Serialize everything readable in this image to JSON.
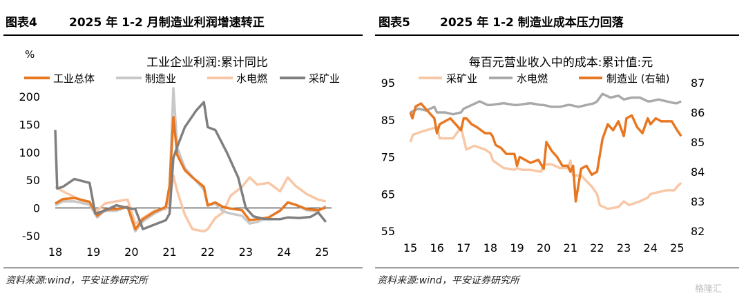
{
  "figures": [
    {
      "label": "图表4",
      "title": "2025 年 1-2 月制造业利润增速转正",
      "source": "资料来源:wind，平安证券研究所"
    },
    {
      "label": "图表5",
      "title": "2025 年 1-2 制造业成本压力回落",
      "source": "资料来源:wind，平安证券研究所"
    }
  ],
  "watermark": "格隆汇",
  "chart_data": [
    {
      "type": "line",
      "title": "工业企业利润:累计同比",
      "ylabel": "%",
      "ylim": [
        -50,
        200
      ],
      "yticks": [
        -50,
        0,
        50,
        100,
        150,
        200
      ],
      "xlim": [
        2018.0,
        2025.25
      ],
      "xticks": [
        "18",
        "19",
        "20",
        "21",
        "22",
        "23",
        "24",
        "25"
      ],
      "legend_position": "top",
      "grid": false,
      "series": [
        {
          "name": "工业总体",
          "color": "#E87722",
          "x": [
            2018.0,
            2018.2,
            2018.5,
            2018.9,
            2019.1,
            2019.3,
            2019.6,
            2019.9,
            2020.1,
            2020.3,
            2020.6,
            2020.9,
            2021.0,
            2021.1,
            2021.2,
            2021.4,
            2021.6,
            2021.9,
            2022.0,
            2022.2,
            2022.4,
            2022.6,
            2022.9,
            2023.1,
            2023.3,
            2023.6,
            2023.9,
            2024.1,
            2024.3,
            2024.6,
            2024.9,
            2025.1
          ],
          "y": [
            8,
            16,
            18,
            11,
            -14,
            -3,
            -2,
            2,
            -38,
            -20,
            -7,
            2,
            40,
            163,
            95,
            68,
            55,
            38,
            5,
            10,
            2,
            -1,
            -4,
            -22,
            -20,
            -17,
            -5,
            10,
            6,
            -2,
            -4,
            1
          ]
        },
        {
          "name": "制造业",
          "color": "#C8C8C8",
          "x": [
            2018.0,
            2018.2,
            2018.5,
            2018.9,
            2019.1,
            2019.3,
            2019.6,
            2019.9,
            2020.1,
            2020.3,
            2020.6,
            2020.9,
            2021.0,
            2021.1,
            2021.2,
            2021.4,
            2021.6,
            2021.9,
            2022.0,
            2022.2,
            2022.4,
            2022.6,
            2022.9,
            2023.1,
            2023.3,
            2023.6,
            2023.9,
            2024.1,
            2024.3,
            2024.6,
            2024.9,
            2025.1
          ],
          "y": [
            5,
            12,
            12,
            6,
            -17,
            -5,
            -5,
            2,
            -42,
            -24,
            -10,
            0,
            40,
            215,
            108,
            72,
            56,
            33,
            4,
            8,
            -6,
            -10,
            -14,
            -28,
            -25,
            -17,
            -4,
            10,
            6,
            -4,
            -6,
            4
          ]
        },
        {
          "name": "水电燃",
          "color": "#F8C7A6",
          "x": [
            2018.0,
            2018.2,
            2018.5,
            2018.9,
            2019.1,
            2019.3,
            2019.6,
            2019.9,
            2020.1,
            2020.3,
            2020.6,
            2020.9,
            2021.0,
            2021.1,
            2021.2,
            2021.4,
            2021.6,
            2021.9,
            2022.0,
            2022.2,
            2022.4,
            2022.6,
            2022.9,
            2023.1,
            2023.3,
            2023.6,
            2023.9,
            2024.1,
            2024.3,
            2024.6,
            2024.9,
            2025.1
          ],
          "y": [
            38,
            30,
            20,
            5,
            -5,
            8,
            12,
            15,
            -28,
            -18,
            -5,
            -2,
            15,
            58,
            30,
            -12,
            -38,
            -42,
            -38,
            -18,
            -8,
            22,
            38,
            55,
            42,
            45,
            30,
            55,
            40,
            25,
            15,
            12
          ]
        },
        {
          "name": "采矿业",
          "color": "#7F7F7F",
          "x": [
            2018.0,
            2018.05,
            2018.2,
            2018.5,
            2018.9,
            2019.05,
            2019.3,
            2019.6,
            2019.9,
            2020.1,
            2020.3,
            2020.6,
            2020.9,
            2021.0,
            2021.1,
            2021.2,
            2021.4,
            2021.7,
            2021.9,
            2022.0,
            2022.2,
            2022.5,
            2022.8,
            2023.0,
            2023.2,
            2023.5,
            2023.9,
            2024.1,
            2024.4,
            2024.7,
            2024.9,
            2025.1
          ],
          "y": [
            140,
            35,
            38,
            52,
            45,
            -10,
            -5,
            5,
            0,
            -2,
            -38,
            -30,
            -22,
            -10,
            90,
            110,
            145,
            175,
            190,
            145,
            140,
            100,
            55,
            0,
            -15,
            -20,
            -20,
            -17,
            -18,
            -16,
            -8,
            -25
          ]
        }
      ]
    },
    {
      "type": "line",
      "title": "每百元营业收入中的成本:累计值:元",
      "ylim": [
        55,
        95
      ],
      "yticks": [
        55,
        65,
        75,
        85,
        95
      ],
      "y2lim": [
        82,
        87
      ],
      "y2ticks": [
        82,
        83,
        84,
        85,
        86,
        87
      ],
      "xlim": [
        2015.0,
        2025.25
      ],
      "xticks": [
        "15",
        "16",
        "17",
        "18",
        "19",
        "20",
        "21",
        "22",
        "23",
        "24",
        "25"
      ],
      "legend_position": "top",
      "grid": false,
      "series": [
        {
          "name": "采矿业",
          "color": "#F8C7A6",
          "axis": "left",
          "x": [
            2015.0,
            2015.1,
            2015.5,
            2016.0,
            2016.1,
            2016.6,
            2016.9,
            2017.1,
            2017.4,
            2017.8,
            2018.0,
            2018.1,
            2018.5,
            2018.9,
            2019.0,
            2019.2,
            2019.5,
            2019.9,
            2020.0,
            2020.3,
            2020.6,
            2020.9,
            2021.0,
            2021.1,
            2021.4,
            2021.8,
            2022.0,
            2022.1,
            2022.4,
            2022.8,
            2023.0,
            2023.2,
            2023.6,
            2023.9,
            2024.0,
            2024.3,
            2024.6,
            2024.9,
            2025.0,
            2025.15
          ],
          "y": [
            79,
            81,
            82,
            83,
            80,
            80,
            83,
            77,
            78,
            77,
            76,
            74,
            72,
            71.5,
            72,
            71.5,
            71.5,
            71,
            73,
            73,
            72,
            72,
            74,
            70,
            70,
            67,
            65,
            62,
            61,
            61.5,
            63,
            62,
            63,
            64,
            65,
            65.5,
            66,
            66,
            67,
            68
          ]
        },
        {
          "name": "水电燃",
          "color": "#A9A9A9",
          "axis": "left",
          "x": [
            2015.0,
            2015.3,
            2015.6,
            2015.9,
            2016.0,
            2016.3,
            2016.6,
            2016.9,
            2017.0,
            2017.3,
            2017.6,
            2017.9,
            2018.0,
            2018.5,
            2018.9,
            2019.0,
            2019.5,
            2019.9,
            2020.0,
            2020.3,
            2020.6,
            2020.9,
            2021.0,
            2021.3,
            2021.6,
            2021.9,
            2022.0,
            2022.2,
            2022.5,
            2022.8,
            2023.0,
            2023.3,
            2023.6,
            2023.9,
            2024.0,
            2024.3,
            2024.6,
            2024.9,
            2025.0,
            2025.15
          ],
          "y": [
            87,
            88,
            87.5,
            88.5,
            87,
            87,
            86.5,
            87,
            88,
            89,
            90,
            89,
            89,
            89.5,
            89,
            89,
            89.5,
            89,
            89,
            88.5,
            88.5,
            89,
            89,
            88.5,
            89,
            89.5,
            90,
            92,
            91,
            91.5,
            90.5,
            91,
            91,
            90,
            90,
            90.5,
            90,
            89.5,
            89.5,
            90
          ]
        },
        {
          "name": "制造业 (右轴)",
          "color": "#E87722",
          "axis": "right",
          "x": [
            2015.0,
            2015.08,
            2015.2,
            2015.4,
            2015.5,
            2015.7,
            2015.9,
            2016.0,
            2016.1,
            2016.3,
            2016.5,
            2016.7,
            2016.9,
            2017.0,
            2017.1,
            2017.3,
            2017.5,
            2017.8,
            2018.0,
            2018.08,
            2018.2,
            2018.4,
            2018.6,
            2018.9,
            2019.0,
            2019.1,
            2019.3,
            2019.5,
            2019.8,
            2020.0,
            2020.1,
            2020.3,
            2020.5,
            2020.7,
            2020.9,
            2021.0,
            2021.1,
            2021.2,
            2021.4,
            2021.6,
            2021.8,
            2022.0,
            2022.2,
            2022.4,
            2022.6,
            2022.8,
            2023.0,
            2023.1,
            2023.3,
            2023.5,
            2023.7,
            2023.9,
            2024.0,
            2024.2,
            2024.4,
            2024.6,
            2024.8,
            2025.0,
            2025.15
          ],
          "y": [
            86.0,
            85.8,
            86.2,
            86.3,
            86.2,
            86.0,
            85.8,
            85.3,
            85.6,
            85.7,
            85.8,
            85.6,
            85.4,
            85.8,
            85.8,
            85.6,
            85.5,
            85.3,
            85.3,
            85.2,
            84.9,
            84.8,
            84.6,
            84.6,
            84.2,
            84.5,
            84.4,
            84.3,
            84.4,
            84.1,
            85.0,
            84.7,
            84.5,
            84.2,
            84.2,
            84.0,
            84.2,
            83.0,
            84.1,
            84.2,
            83.9,
            84.0,
            85.1,
            85.6,
            85.4,
            85.7,
            85.2,
            85.8,
            85.9,
            85.5,
            85.3,
            85.8,
            85.6,
            85.8,
            85.7,
            85.7,
            85.7,
            85.4,
            85.2
          ]
        }
      ]
    }
  ]
}
